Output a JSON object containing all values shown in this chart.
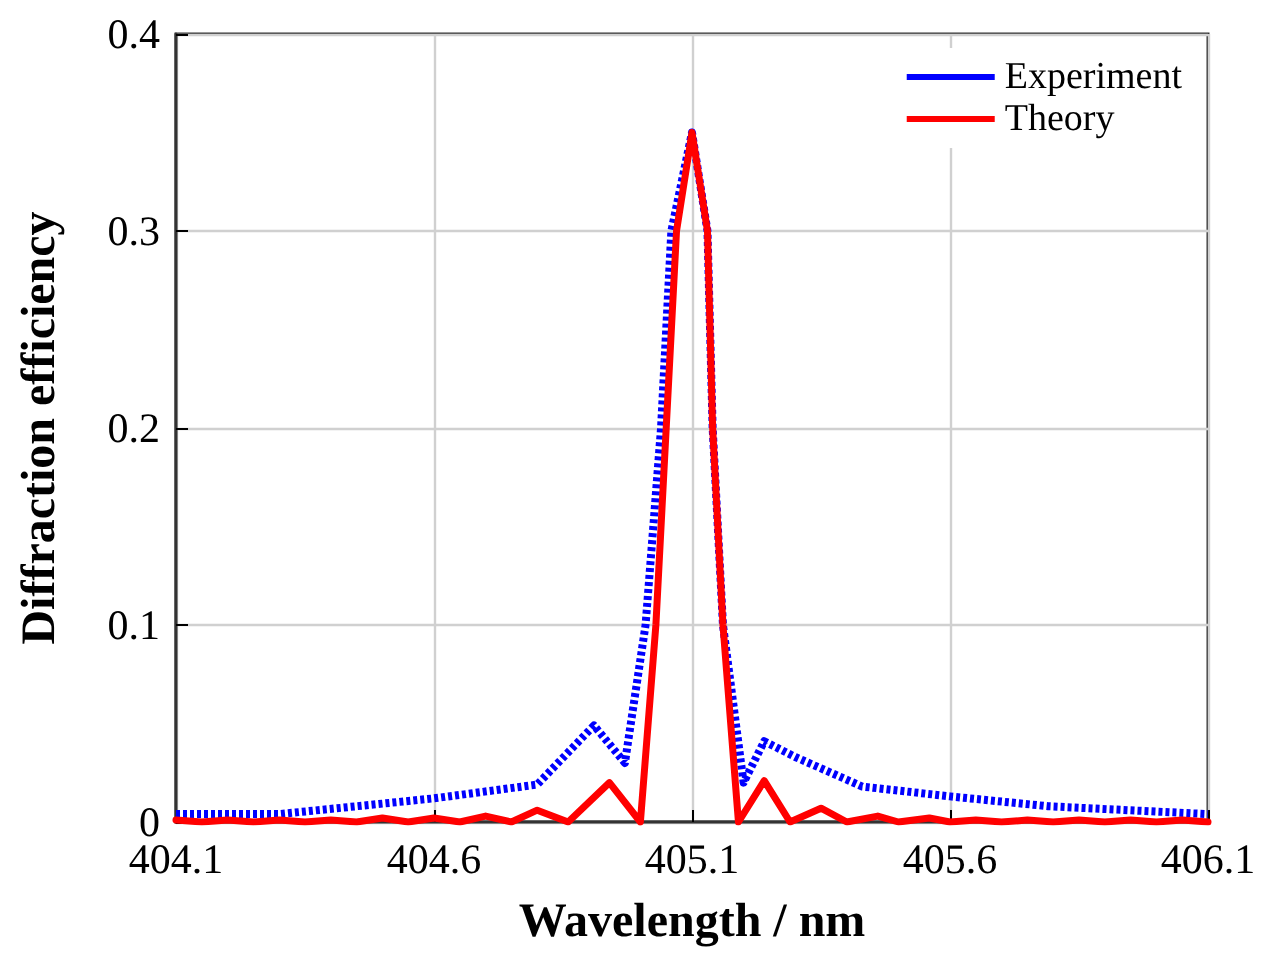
{
  "chart_data": {
    "type": "line",
    "xlabel": "Wavelength / nm",
    "ylabel": "Diffraction efficiency",
    "xlim": [
      404.1,
      406.1
    ],
    "xticks": [
      404.1,
      404.6,
      405.1,
      405.6,
      406.1
    ],
    "ylim": [
      0,
      0.4
    ],
    "yticks": [
      0,
      0.1,
      0.2,
      0.3,
      0.4
    ],
    "grid": true,
    "legend": "top right",
    "marker": "none",
    "series": [
      {
        "name": "Experiment",
        "color": "#0000ff",
        "line_style": "dotted",
        "x": [
          404.1,
          404.3,
          404.6,
          404.8,
          404.91,
          404.97,
          405.01,
          405.04,
          405.06,
          405.1,
          405.13,
          405.14,
          405.16,
          405.2,
          405.24,
          405.3,
          405.43,
          405.6,
          405.79,
          406.1
        ],
        "values": [
          0.004,
          0.004,
          0.012,
          0.019,
          0.049,
          0.03,
          0.1,
          0.2,
          0.3,
          0.35,
          0.3,
          0.2,
          0.1,
          0.02,
          0.041,
          0.033,
          0.018,
          0.013,
          0.008,
          0.004
        ]
      },
      {
        "name": "Theory",
        "color": "#ff0000",
        "line_style": "solid",
        "x": [
          404.1,
          404.15,
          404.2,
          404.25,
          404.3,
          404.35,
          404.4,
          404.45,
          404.5,
          404.55,
          404.6,
          404.65,
          404.7,
          404.75,
          404.8,
          404.86,
          404.94,
          405.0,
          405.03,
          405.05,
          405.07,
          405.1,
          405.13,
          405.14,
          405.16,
          405.19,
          405.24,
          405.29,
          405.35,
          405.4,
          405.46,
          405.5,
          405.56,
          405.6,
          405.65,
          405.7,
          405.75,
          405.8,
          405.85,
          405.9,
          405.95,
          406.0,
          406.05,
          406.1
        ],
        "values": [
          0.001,
          0,
          0.001,
          0,
          0.001,
          0,
          0.001,
          0,
          0.002,
          0,
          0.002,
          0,
          0.003,
          0,
          0.006,
          0,
          0.02,
          0,
          0.1,
          0.2,
          0.3,
          0.35,
          0.3,
          0.2,
          0.1,
          0,
          0.021,
          0,
          0.007,
          0,
          0.003,
          0,
          0.002,
          0,
          0.001,
          0,
          0.001,
          0,
          0.001,
          0,
          0.001,
          0,
          0.001,
          0
        ]
      }
    ]
  }
}
